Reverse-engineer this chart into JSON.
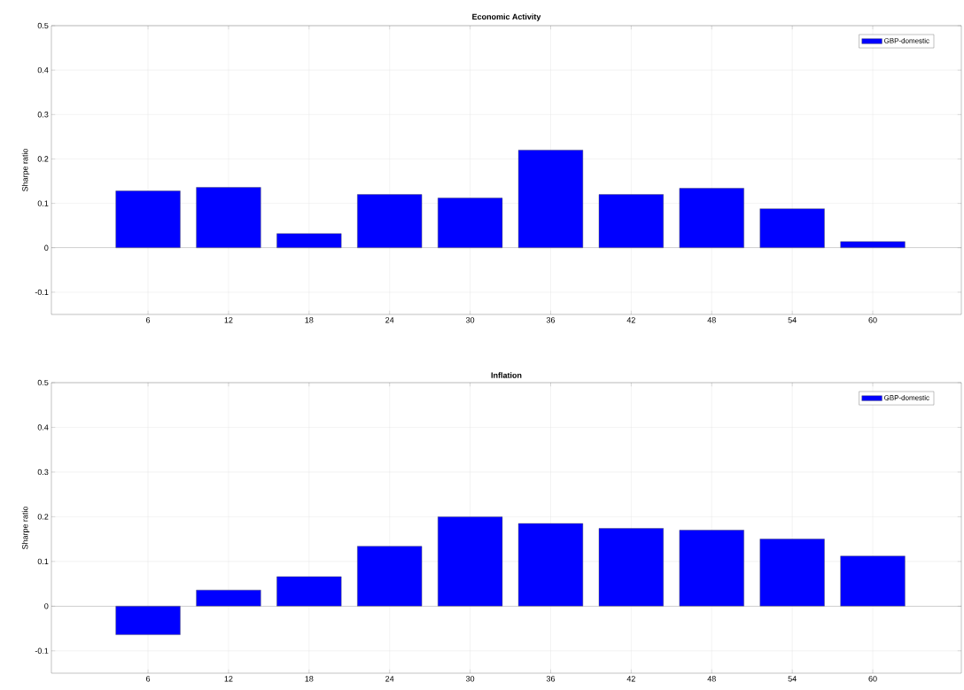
{
  "chart_data": [
    {
      "type": "bar",
      "title": "Economic Activity",
      "ylabel": "Sharpe ratio",
      "categories": [
        "6",
        "12",
        "18",
        "24",
        "30",
        "36",
        "42",
        "48",
        "54",
        "60"
      ],
      "series": [
        {
          "name": "GBP-domestic",
          "color": "#0000ff",
          "values": [
            0.128,
            0.136,
            0.032,
            0.12,
            0.112,
            0.22,
            0.12,
            0.134,
            0.088,
            0.014
          ]
        }
      ],
      "ylim": [
        -0.15,
        0.5
      ],
      "yticks": [
        -0.1,
        0,
        0.1,
        0.2,
        0.3,
        0.4,
        0.5
      ],
      "grid": true,
      "legend": "top right"
    },
    {
      "type": "bar",
      "title": "Inflation",
      "ylabel": "Sharpe ratio",
      "categories": [
        "6",
        "12",
        "18",
        "24",
        "30",
        "36",
        "42",
        "48",
        "54",
        "60"
      ],
      "series": [
        {
          "name": "GBP-domestic",
          "color": "#0000ff",
          "values": [
            -0.064,
            0.036,
            0.066,
            0.134,
            0.2,
            0.185,
            0.174,
            0.17,
            0.15,
            0.112
          ]
        }
      ],
      "ylim": [
        -0.15,
        0.5
      ],
      "yticks": [
        -0.1,
        0,
        0.1,
        0.2,
        0.3,
        0.4,
        0.5
      ],
      "grid": true,
      "legend": "top right"
    }
  ]
}
